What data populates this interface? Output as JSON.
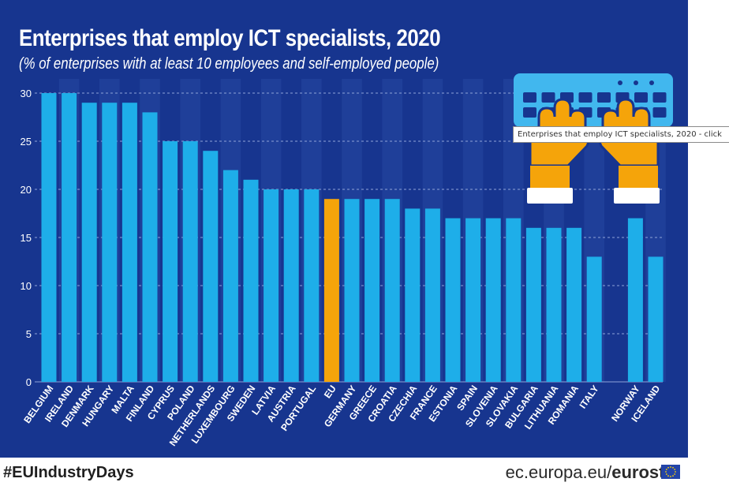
{
  "title": "Enterprises that employ ICT specialists, 2020",
  "subtitle": "(% of enterprises with at least 10 employees and self-employed people)",
  "tooltip": "Enterprises that employ ICT specialists, 2020 - click",
  "footer": {
    "hashtag": "#EUIndustryDays",
    "source_prefix": "ec.europa.eu/",
    "source_brand": "eurostat"
  },
  "colors": {
    "background": "#17358f",
    "bar": "#1eaee9",
    "eu_bar": "#f5a40a",
    "grid": "#8fa3d8",
    "column_shade": "#1f3f99",
    "icon_keyboard": "#41b7ee",
    "icon_hands": "#f5a40a"
  },
  "chart_data": {
    "type": "bar",
    "ylim": [
      0,
      30
    ],
    "yticks": [
      0,
      5,
      10,
      15,
      20,
      25,
      30
    ],
    "grid": true,
    "categories": [
      "BELGIUM",
      "IRELAND",
      "DENMARK",
      "HUNGARY",
      "MALTA",
      "FINLAND",
      "CYPRUS",
      "POLAND",
      "NETHERLANDS",
      "LUXEMBOURG",
      "SWEDEN",
      "LATVIA",
      "AUSTRIA",
      "PORTUGAL",
      "EU",
      "GERMANY",
      "GREECE",
      "CROATIA",
      "CZECHIA",
      "FRANCE",
      "ESTONIA",
      "SPAIN",
      "SLOVENIA",
      "SLOVAKIA",
      "BULGARIA",
      "LITHUANIA",
      "ROMANIA",
      "ITALY",
      "NORWAY",
      "ICELAND"
    ],
    "values": [
      30,
      30,
      29,
      29,
      29,
      28,
      25,
      25,
      24,
      22,
      21,
      20,
      20,
      20,
      19,
      19,
      19,
      19,
      18,
      18,
      17,
      17,
      17,
      17,
      16,
      16,
      16,
      13,
      17,
      13
    ],
    "highlight": "EU"
  }
}
